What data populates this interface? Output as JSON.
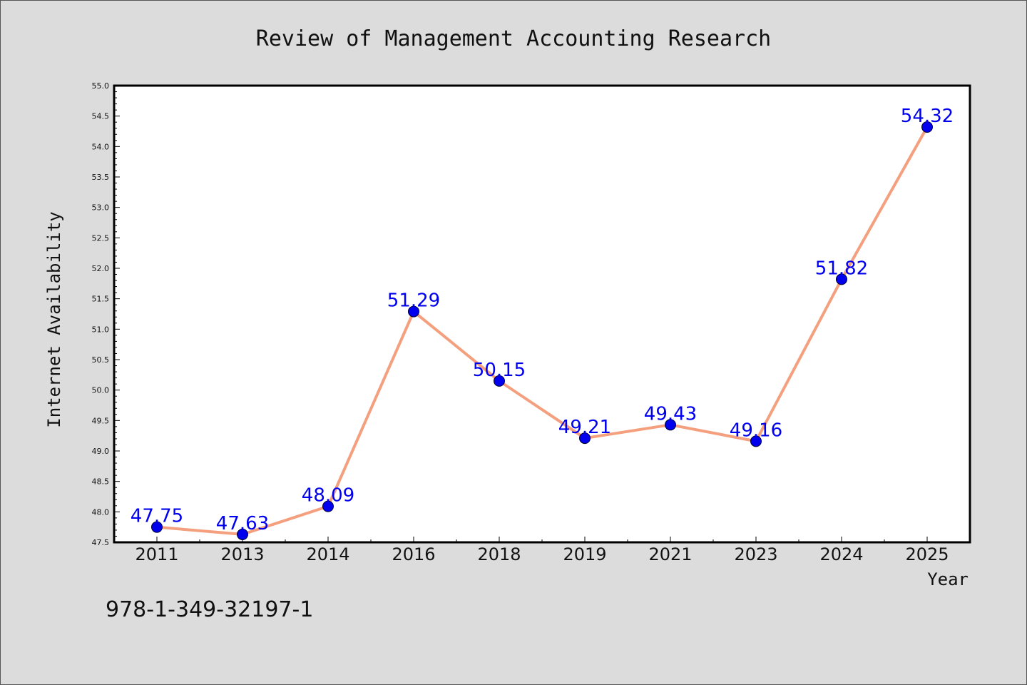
{
  "footer_text": "978-1-349-32197-1",
  "colors": {
    "background": "#dcdcdc",
    "plot_background": "#ffffff",
    "line": "#f4a07f",
    "marker": "#0000ee",
    "data_label": "#0000ee"
  },
  "chart_data": {
    "type": "line",
    "title": "Review of Management Accounting Research",
    "xlabel": "Year",
    "ylabel": "Internet Availability",
    "x": [
      "2011",
      "2013",
      "2014",
      "2016",
      "2018",
      "2019",
      "2021",
      "2023",
      "2024",
      "2025"
    ],
    "series": [
      {
        "values": [
          47.75,
          47.63,
          48.09,
          51.29,
          50.15,
          49.21,
          49.43,
          49.16,
          51.82,
          54.32
        ]
      }
    ],
    "data_labels": [
      "47.75",
      "47.63",
      "48.09",
      "51.29",
      "50.15",
      "49.21",
      "49.43",
      "49.16",
      "51.82",
      "54.32"
    ],
    "ylim": [
      47.5,
      55.0
    ],
    "yticks": [
      "47.5",
      "48.0",
      "48.5",
      "49.0",
      "49.5",
      "50.0",
      "50.5",
      "51.0",
      "51.5",
      "52.0",
      "52.5",
      "53.0",
      "53.5",
      "54.0",
      "54.5",
      "55.0"
    ],
    "grid": false,
    "legend": "none"
  }
}
